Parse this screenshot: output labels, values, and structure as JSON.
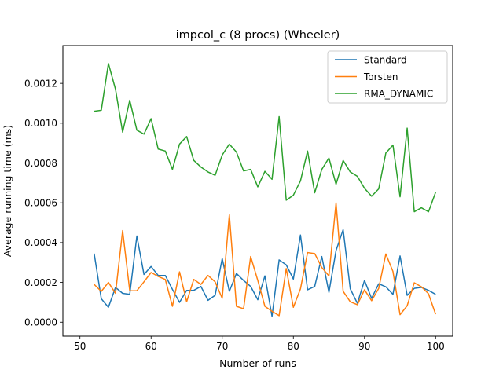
{
  "chart_data": {
    "type": "line",
    "title": "impcol_c (8 procs) (Wheeler)",
    "xlabel": "Number of runs",
    "ylabel": "Average running time (ms)",
    "xlim": [
      47.6,
      102.4
    ],
    "ylim": [
      -7e-05,
      0.00139
    ],
    "xticks": [
      50,
      60,
      70,
      80,
      90,
      100
    ],
    "xtick_labels": [
      "50",
      "60",
      "70",
      "80",
      "90",
      "100"
    ],
    "yticks": [
      0,
      0.0002,
      0.0004,
      0.0006,
      0.0008,
      0.001,
      0.0012
    ],
    "ytick_labels": [
      "0.0000",
      "0.0002",
      "0.0004",
      "0.0006",
      "0.0008",
      "0.0010",
      "0.0012"
    ],
    "grid": false,
    "legend_position": "top-right",
    "x": [
      52,
      53,
      54,
      55,
      56,
      57,
      58,
      59,
      60,
      61,
      62,
      63,
      64,
      65,
      66,
      67,
      68,
      69,
      70,
      71,
      72,
      73,
      74,
      75,
      76,
      77,
      78,
      79,
      80,
      81,
      82,
      83,
      84,
      85,
      86,
      87,
      88,
      89,
      90,
      91,
      92,
      93,
      94,
      95,
      96,
      97,
      98,
      99,
      100
    ],
    "series": [
      {
        "name": "Standard",
        "color": "#1f77b4",
        "values": [
          0.000345,
          0.000118,
          7.5e-05,
          0.000175,
          0.000145,
          0.00014,
          0.000433,
          0.00024,
          0.00028,
          0.000235,
          0.000235,
          0.000165,
          0.0001,
          0.00016,
          0.00016,
          0.00018,
          0.00011,
          0.000135,
          0.00032,
          0.000155,
          0.000245,
          0.00021,
          0.00018,
          0.000113,
          0.000233,
          3e-05,
          0.000313,
          0.000288,
          0.000217,
          0.000438,
          0.000163,
          0.00018,
          0.00033,
          0.00015,
          0.00036,
          0.000465,
          0.000168,
          9.5e-05,
          0.00021,
          0.00012,
          0.000193,
          0.000178,
          0.00014,
          0.000333,
          0.000135,
          0.00017,
          0.000175,
          0.00016,
          0.00014
        ]
      },
      {
        "name": "Torsten",
        "color": "#ff7f0e",
        "values": [
          0.00019,
          0.000155,
          0.0002,
          0.000145,
          0.00046,
          0.000158,
          0.000158,
          0.000203,
          0.00025,
          0.00023,
          0.000215,
          8e-05,
          0.000253,
          0.000103,
          0.000215,
          0.00019,
          0.000235,
          0.000203,
          0.00012,
          0.00054,
          8e-05,
          6.8e-05,
          0.00033,
          0.00021,
          8e-05,
          5.5e-05,
          3.3e-05,
          0.00027,
          7.5e-05,
          0.000168,
          0.00035,
          0.000345,
          0.000275,
          0.000233,
          0.0006,
          0.000155,
          0.000103,
          8.8e-05,
          0.000163,
          0.000108,
          0.00017,
          0.000343,
          0.000255,
          3.8e-05,
          8.3e-05,
          0.000198,
          0.000178,
          0.000143,
          4e-05
        ]
      },
      {
        "name": "RMA_DYNAMIC",
        "color": "#2ca02c",
        "values": [
          0.00106,
          0.001065,
          0.0013,
          0.00117,
          0.000955,
          0.001115,
          0.000965,
          0.000945,
          0.001023,
          0.00087,
          0.00086,
          0.000768,
          0.000895,
          0.000933,
          0.000813,
          0.00078,
          0.000755,
          0.000738,
          0.00084,
          0.000895,
          0.000855,
          0.00076,
          0.000768,
          0.00068,
          0.000758,
          0.000718,
          0.001033,
          0.000613,
          0.000638,
          0.00071,
          0.00086,
          0.00065,
          0.000768,
          0.000825,
          0.000693,
          0.000813,
          0.000755,
          0.000733,
          0.000673,
          0.000633,
          0.00067,
          0.00085,
          0.00089,
          0.00063,
          0.000975,
          0.000555,
          0.000575,
          0.000555,
          0.000653
        ]
      }
    ]
  }
}
